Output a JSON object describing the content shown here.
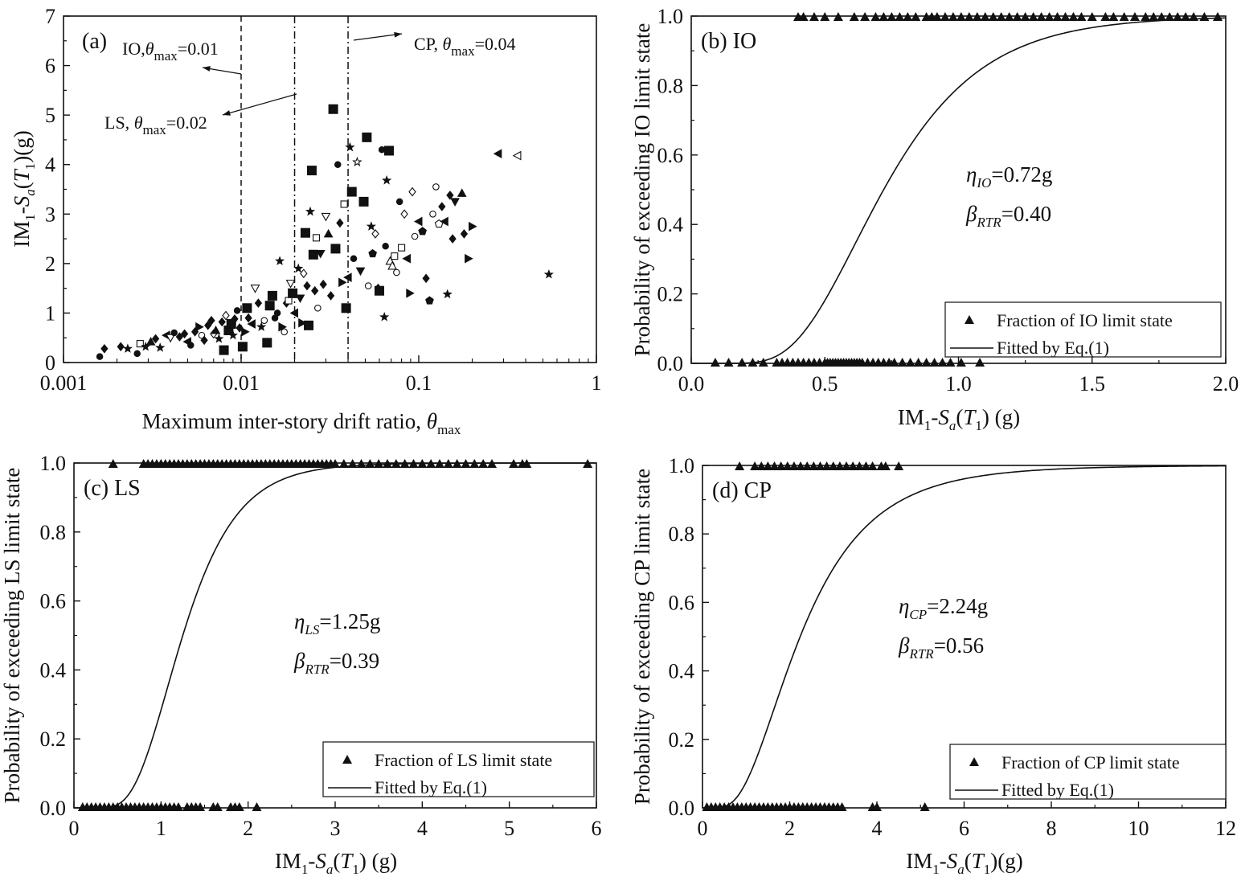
{
  "chart_data": [
    {
      "panel": "(a)",
      "type": "scatter",
      "xscale": "log",
      "xlim": [
        0.001,
        1
      ],
      "ylim": [
        0,
        7
      ],
      "xticks": [
        "0.001",
        "0.01",
        "0.1",
        "1"
      ],
      "yticks": [
        "0",
        "1",
        "2",
        "3",
        "4",
        "5",
        "6",
        "7"
      ],
      "xlabel": {
        "main": "Maximum inter-story drift ratio, ",
        "sym": "θ",
        "sub": "max"
      },
      "ylabel": {
        "a": "IM",
        "a_sub": "1",
        "b": "-",
        "c": "S",
        "c_sub": "a",
        "d": "(",
        "e": "T",
        "e_sub": "1",
        "f": ")(g)"
      },
      "limit_lines": [
        {
          "name": "IO",
          "theta": 0.01,
          "style": "dashed",
          "text_a": "IO,",
          "sym": "θ",
          "sub": "max",
          "text_b": "=0.01"
        },
        {
          "name": "LS",
          "theta": 0.02,
          "style": "dash-dot",
          "text_a": "LS, ",
          "sym": "θ",
          "sub": "max",
          "text_b": "=0.02"
        },
        {
          "name": "CP",
          "theta": 0.04,
          "style": "dash-dot",
          "text_a": "CP, ",
          "sym": "θ",
          "sub": "max",
          "text_b": "=0.04"
        }
      ],
      "points": [
        [
          0.0016,
          0.12,
          "circle"
        ],
        [
          0.0017,
          0.28,
          "diamond"
        ],
        [
          0.0021,
          0.32,
          "diamond"
        ],
        [
          0.0023,
          0.28,
          "star"
        ],
        [
          0.0026,
          0.18,
          "circle"
        ],
        [
          0.0027,
          0.38,
          "hollow-square"
        ],
        [
          0.0029,
          0.32,
          "star"
        ],
        [
          0.0031,
          0.42,
          "triangle"
        ],
        [
          0.0033,
          0.48,
          "diamond"
        ],
        [
          0.0035,
          0.3,
          "star"
        ],
        [
          0.0038,
          0.55,
          "tri-left"
        ],
        [
          0.004,
          0.5,
          "hollow-down"
        ],
        [
          0.0042,
          0.6,
          "circle"
        ],
        [
          0.0045,
          0.52,
          "diamond"
        ],
        [
          0.0048,
          0.58,
          "diamond"
        ],
        [
          0.005,
          0.42,
          "tri-left"
        ],
        [
          0.0052,
          0.35,
          "circle"
        ],
        [
          0.0055,
          0.62,
          "diamond"
        ],
        [
          0.0058,
          0.72,
          "tri-right"
        ],
        [
          0.006,
          0.55,
          "hollow-circle"
        ],
        [
          0.0062,
          0.45,
          "diamond"
        ],
        [
          0.0065,
          0.75,
          "diamond"
        ],
        [
          0.0068,
          0.85,
          "diamond"
        ],
        [
          0.007,
          0.58,
          "hollow-diamond"
        ],
        [
          0.0072,
          0.65,
          "triangle"
        ],
        [
          0.0075,
          0.48,
          "star"
        ],
        [
          0.0078,
          0.82,
          "diamond"
        ],
        [
          0.008,
          0.25,
          "square"
        ],
        [
          0.0082,
          0.95,
          "hollow-diamond"
        ],
        [
          0.0085,
          0.65,
          "square"
        ],
        [
          0.0088,
          0.78,
          "square"
        ],
        [
          0.009,
          0.55,
          "star"
        ],
        [
          0.0092,
          0.88,
          "diamond"
        ],
        [
          0.0095,
          1.05,
          "circle"
        ],
        [
          0.0098,
          0.7,
          "diamond"
        ],
        [
          0.0102,
          0.32,
          "square"
        ],
        [
          0.0105,
          0.62,
          "tri-right"
        ],
        [
          0.0108,
          1.1,
          "square"
        ],
        [
          0.011,
          0.9,
          "diamond"
        ],
        [
          0.0115,
          0.78,
          "tri-left"
        ],
        [
          0.012,
          1.5,
          "hollow-down"
        ],
        [
          0.0125,
          1.2,
          "diamond"
        ],
        [
          0.013,
          0.72,
          "star"
        ],
        [
          0.0135,
          0.85,
          "hollow-circle"
        ],
        [
          0.014,
          0.4,
          "square"
        ],
        [
          0.0145,
          1.15,
          "square"
        ],
        [
          0.015,
          1.35,
          "square"
        ],
        [
          0.0155,
          0.9,
          "circle"
        ],
        [
          0.016,
          1.0,
          "circle"
        ],
        [
          0.0165,
          2.05,
          "star"
        ],
        [
          0.017,
          0.72,
          "tri-right"
        ],
        [
          0.0175,
          0.62,
          "hollow-circle"
        ],
        [
          0.018,
          1.2,
          "diamond"
        ],
        [
          0.0185,
          1.25,
          "hollow-square"
        ],
        [
          0.019,
          1.6,
          "hollow-down"
        ],
        [
          0.0195,
          1.4,
          "square"
        ],
        [
          0.02,
          1.0,
          "tri-left"
        ],
        [
          0.021,
          1.9,
          "star"
        ],
        [
          0.0215,
          1.3,
          "tri-down"
        ],
        [
          0.022,
          0.8,
          "tri-right"
        ],
        [
          0.0225,
          1.8,
          "hollow-diamond"
        ],
        [
          0.023,
          2.62,
          "square"
        ],
        [
          0.0235,
          1.55,
          "diamond"
        ],
        [
          0.024,
          0.75,
          "square"
        ],
        [
          0.0245,
          3.05,
          "star"
        ],
        [
          0.025,
          3.88,
          "square"
        ],
        [
          0.0255,
          2.18,
          "square"
        ],
        [
          0.026,
          1.45,
          "diamond"
        ],
        [
          0.0265,
          2.52,
          "hollow-square"
        ],
        [
          0.027,
          1.1,
          "hollow-circle"
        ],
        [
          0.028,
          2.2,
          "tri-down"
        ],
        [
          0.029,
          1.58,
          "diamond"
        ],
        [
          0.03,
          2.95,
          "hollow-down"
        ],
        [
          0.031,
          2.6,
          "triangle"
        ],
        [
          0.032,
          1.35,
          "diamond"
        ],
        [
          0.033,
          5.12,
          "square"
        ],
        [
          0.034,
          2.3,
          "square"
        ],
        [
          0.035,
          4.0,
          "circle"
        ],
        [
          0.036,
          2.82,
          "diamond"
        ],
        [
          0.037,
          1.62,
          "tri-right"
        ],
        [
          0.038,
          3.2,
          "hollow-square"
        ],
        [
          0.039,
          1.1,
          "square"
        ],
        [
          0.04,
          1.72,
          "tri-left"
        ],
        [
          0.041,
          4.35,
          "star"
        ],
        [
          0.042,
          3.45,
          "square"
        ],
        [
          0.043,
          2.1,
          "circle"
        ],
        [
          0.045,
          4.05,
          "hollow-star"
        ],
        [
          0.047,
          1.85,
          "tri-down"
        ],
        [
          0.049,
          3.25,
          "square"
        ],
        [
          0.051,
          4.55,
          "square"
        ],
        [
          0.052,
          1.55,
          "hollow-circle"
        ],
        [
          0.054,
          2.75,
          "star"
        ],
        [
          0.055,
          2.2,
          "pentagon"
        ],
        [
          0.057,
          2.6,
          "hollow-diamond"
        ],
        [
          0.059,
          1.5,
          "diamond"
        ],
        [
          0.06,
          1.45,
          "square"
        ],
        [
          0.062,
          4.3,
          "circle"
        ],
        [
          0.064,
          0.92,
          "star"
        ],
        [
          0.065,
          2.35,
          "circle"
        ],
        [
          0.066,
          3.68,
          "star"
        ],
        [
          0.068,
          4.28,
          "square"
        ],
        [
          0.069,
          2.05,
          "hollow-triangle"
        ],
        [
          0.071,
          1.95,
          "hollow-triangle"
        ],
        [
          0.073,
          2.15,
          "hollow-square"
        ],
        [
          0.075,
          1.82,
          "hollow-circle"
        ],
        [
          0.078,
          3.25,
          "circle"
        ],
        [
          0.08,
          2.32,
          "hollow-square"
        ],
        [
          0.083,
          3.0,
          "hollow-diamond"
        ],
        [
          0.086,
          2.1,
          "tri-left"
        ],
        [
          0.089,
          1.4,
          "tri-right"
        ],
        [
          0.092,
          3.45,
          "hollow-diamond"
        ],
        [
          0.095,
          2.55,
          "hollow-circle"
        ],
        [
          0.1,
          2.85,
          "tri-left"
        ],
        [
          0.105,
          2.65,
          "pentagon"
        ],
        [
          0.11,
          1.7,
          "diamond"
        ],
        [
          0.115,
          1.25,
          "pentagon"
        ],
        [
          0.12,
          3.0,
          "hollow-circle"
        ],
        [
          0.125,
          3.55,
          "hollow-circle"
        ],
        [
          0.13,
          2.8,
          "hollow-pentagon"
        ],
        [
          0.135,
          3.15,
          "diamond"
        ],
        [
          0.14,
          2.85,
          "tri-left"
        ],
        [
          0.145,
          1.38,
          "star"
        ],
        [
          0.15,
          3.38,
          "diamond"
        ],
        [
          0.155,
          2.5,
          "diamond"
        ],
        [
          0.16,
          3.25,
          "tri-down"
        ],
        [
          0.175,
          3.42,
          "triangle"
        ],
        [
          0.18,
          2.6,
          "diamond"
        ],
        [
          0.19,
          2.1,
          "tri-right"
        ],
        [
          0.2,
          2.75,
          "tri-right"
        ],
        [
          0.28,
          4.22,
          "tri-left"
        ],
        [
          0.36,
          4.18,
          "hollow-tri-left"
        ],
        [
          0.54,
          1.78,
          "star"
        ]
      ]
    },
    {
      "panel": "(b)",
      "name": "IO",
      "type": "line",
      "xlim": [
        0,
        2.0
      ],
      "ylim": [
        0,
        1.0
      ],
      "xticks": [
        "0.0",
        "0.5",
        "1.0",
        "1.5",
        "2.0"
      ],
      "yticks": [
        "0.0",
        "0.2",
        "0.4",
        "0.6",
        "0.8",
        "1.0"
      ],
      "xlabel": {
        "a": "IM",
        "a_sub": "1",
        "b": "-",
        "c": "S",
        "c_sub": "a",
        "d": "(",
        "e": "T",
        "e_sub": "1",
        "f": ") (g)"
      },
      "ylabel": "Probability of exceeding IO limit state",
      "eta_sym": "η",
      "eta_sub": "IO",
      "eta_value": "=0.72g",
      "median": 0.72,
      "beta_sym": "β",
      "beta_sub": "RTR",
      "beta_value": "=0.40",
      "dispersion": 0.4,
      "legend": [
        "Fraction of IO limit state",
        "Fitted by Eq.(1)"
      ],
      "zero_points": [
        0.09,
        0.14,
        0.19,
        0.23,
        0.27,
        0.32,
        0.34,
        0.36,
        0.38,
        0.4,
        0.42,
        0.44,
        0.46,
        0.48,
        0.5,
        0.51,
        0.52,
        0.53,
        0.54,
        0.55,
        0.56,
        0.57,
        0.58,
        0.59,
        0.6,
        0.61,
        0.62,
        0.63,
        0.64,
        0.66,
        0.68,
        0.7,
        0.72,
        0.74,
        0.76,
        0.79,
        0.82,
        0.85,
        0.88,
        0.91,
        0.94,
        0.97,
        1.01,
        1.08
      ],
      "one_points": [
        0.4,
        0.42,
        0.46,
        0.5,
        0.55,
        0.61,
        0.65,
        0.69,
        0.72,
        0.75,
        0.78,
        0.81,
        0.84,
        0.88,
        0.9,
        0.92,
        0.95,
        0.98,
        1.01,
        1.04,
        1.07,
        1.1,
        1.13,
        1.16,
        1.19,
        1.22,
        1.25,
        1.28,
        1.31,
        1.34,
        1.37,
        1.4,
        1.43,
        1.46,
        1.5,
        1.55,
        1.58,
        1.62,
        1.66,
        1.7,
        1.73,
        1.76,
        1.79,
        1.82,
        1.85,
        1.88,
        1.92,
        1.97
      ]
    },
    {
      "panel": "(c)",
      "name": "LS",
      "type": "line",
      "xlim": [
        0,
        6
      ],
      "ylim": [
        0,
        1.0
      ],
      "xticks": [
        "0",
        "1",
        "2",
        "3",
        "4",
        "5",
        "6"
      ],
      "yticks": [
        "0.0",
        "0.2",
        "0.4",
        "0.6",
        "0.8",
        "1.0"
      ],
      "xlabel": {
        "a": "IM",
        "a_sub": "1",
        "b": "-",
        "c": "S",
        "c_sub": "a",
        "d": "(",
        "e": "T",
        "e_sub": "1",
        "f": ") (g)"
      },
      "ylabel": "Probability of exceeding LS limit state",
      "eta_sym": "η",
      "eta_sub": "LS",
      "eta_value": "=1.25g",
      "median": 1.25,
      "beta_sym": "β",
      "beta_sub": "RTR",
      "beta_value": "=0.39",
      "dispersion": 0.39,
      "legend": [
        "Fraction of LS limit state",
        "Fitted by Eq.(1)"
      ],
      "zero_points": [
        0.1,
        0.15,
        0.2,
        0.25,
        0.3,
        0.35,
        0.4,
        0.45,
        0.5,
        0.55,
        0.6,
        0.65,
        0.7,
        0.75,
        0.8,
        0.85,
        0.9,
        0.95,
        1.0,
        1.05,
        1.1,
        1.15,
        1.2,
        1.3,
        1.35,
        1.4,
        1.45,
        1.6,
        1.65,
        1.8,
        1.85,
        1.9,
        2.1
      ],
      "one_points": [
        0.45,
        0.8,
        0.85,
        0.9,
        0.95,
        1.0,
        1.05,
        1.1,
        1.15,
        1.2,
        1.25,
        1.3,
        1.35,
        1.4,
        1.45,
        1.5,
        1.55,
        1.6,
        1.65,
        1.7,
        1.75,
        1.8,
        1.85,
        1.9,
        1.95,
        2.0,
        2.05,
        2.1,
        2.15,
        2.2,
        2.25,
        2.3,
        2.35,
        2.4,
        2.45,
        2.5,
        2.55,
        2.6,
        2.65,
        2.7,
        2.75,
        2.8,
        2.85,
        2.9,
        2.95,
        3.0,
        3.1,
        3.2,
        3.3,
        3.4,
        3.5,
        3.6,
        3.7,
        3.8,
        3.9,
        4.0,
        4.1,
        4.2,
        4.3,
        4.4,
        4.5,
        4.6,
        4.7,
        4.8,
        5.05,
        5.15,
        5.2,
        5.9
      ]
    },
    {
      "panel": "(d)",
      "name": "CP",
      "type": "line",
      "xlim": [
        0,
        12
      ],
      "ylim": [
        0,
        1.0
      ],
      "xticks": [
        "0",
        "2",
        "4",
        "6",
        "8",
        "10",
        "12"
      ],
      "yticks": [
        "0.0",
        "0.2",
        "0.4",
        "0.6",
        "0.8",
        "1.0"
      ],
      "xlabel": {
        "a": "IM",
        "a_sub": "1",
        "b": "-",
        "c": "S",
        "c_sub": "a",
        "d": "(",
        "e": "T",
        "e_sub": "1",
        "f": ")(g)"
      },
      "ylabel": "Probability of exceeding CP limit state",
      "eta_sym": "η",
      "eta_sub": "CP",
      "eta_value": "=2.24g",
      "median": 2.24,
      "beta_sym": "β",
      "beta_sub": "RTR",
      "beta_value": "=0.56",
      "dispersion": 0.56,
      "legend": [
        "Fraction of CP limit state",
        "Fitted by Eq.(1)"
      ],
      "zero_points": [
        0.1,
        0.2,
        0.3,
        0.4,
        0.5,
        0.6,
        0.7,
        0.8,
        0.9,
        1.0,
        1.1,
        1.2,
        1.3,
        1.4,
        1.5,
        1.6,
        1.7,
        1.8,
        1.9,
        2.0,
        2.1,
        2.2,
        2.3,
        2.4,
        2.5,
        2.6,
        2.7,
        2.8,
        2.9,
        3.0,
        3.1,
        3.2,
        3.9,
        4.0,
        5.1
      ],
      "one_points": [
        0.85,
        1.2,
        1.35,
        1.5,
        1.65,
        1.8,
        1.95,
        2.1,
        2.25,
        2.4,
        2.55,
        2.7,
        2.85,
        3.0,
        3.15,
        3.3,
        3.45,
        3.6,
        3.75,
        3.9,
        4.1,
        4.2,
        4.5
      ]
    }
  ]
}
